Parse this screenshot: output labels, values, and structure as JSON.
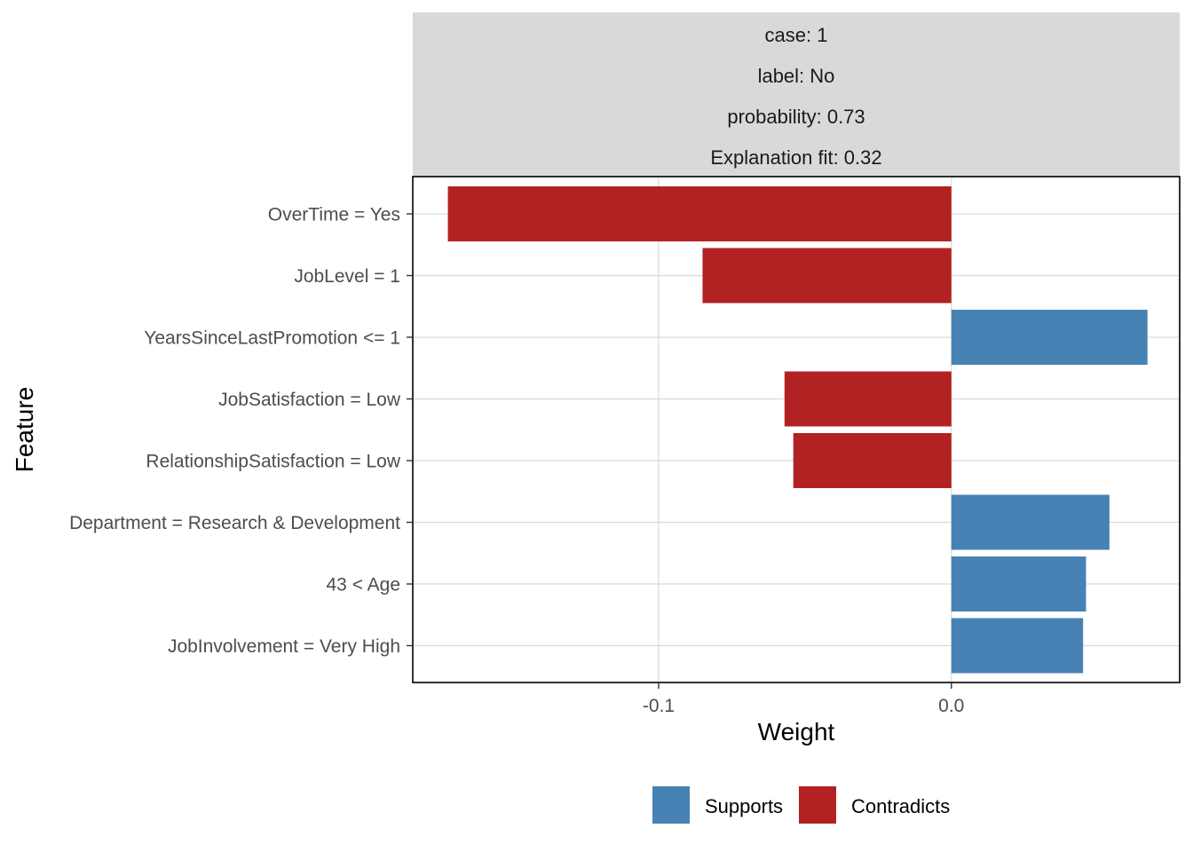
{
  "chart_data": {
    "type": "bar",
    "orientation": "horizontal",
    "facet_strip": [
      "case: 1",
      "label: No",
      "probability: 0.73",
      "Explanation fit: 0.32"
    ],
    "xlabel": "Weight",
    "ylabel": "Feature",
    "xlim": [
      -0.184,
      0.078
    ],
    "x_ticks": [
      {
        "value": -0.1,
        "label": "-0.1"
      },
      {
        "value": 0.0,
        "label": "0.0"
      }
    ],
    "grid": true,
    "legend_placement": "bottom",
    "legend": [
      {
        "key": "supports",
        "label": "Supports",
        "color": "#4682B4"
      },
      {
        "key": "contradicts",
        "label": "Contradicts",
        "color": "#B22222"
      }
    ],
    "categories": [
      "OverTime = Yes",
      "JobLevel = 1",
      "YearsSinceLastPromotion <= 1",
      "JobSatisfaction = Low",
      "RelationshipSatisfaction = Low",
      "Department = Research & Development",
      "43 < Age",
      "JobInvolvement = Very High"
    ],
    "values": [
      -0.172,
      -0.085,
      0.067,
      -0.057,
      -0.054,
      0.054,
      0.046,
      0.045
    ],
    "series_key": [
      "contradicts",
      "contradicts",
      "supports",
      "contradicts",
      "contradicts",
      "supports",
      "supports",
      "supports"
    ]
  }
}
